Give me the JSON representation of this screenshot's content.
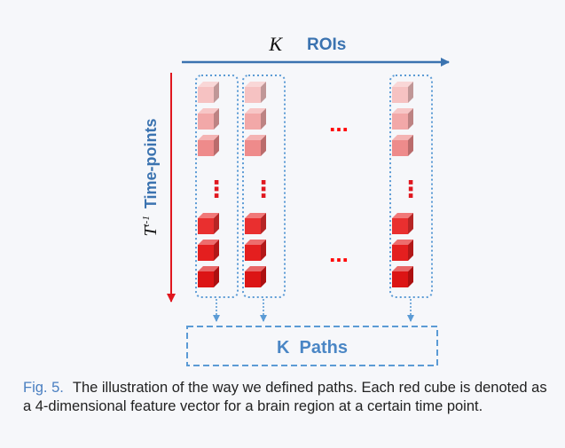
{
  "diagram": {
    "k_symbol": "K",
    "rois_label": "ROIs",
    "time_symbol_base": "T",
    "time_symbol_sup": "t-1",
    "time_label": "Time-points",
    "paths_label": "K  Paths",
    "vertical_ellipsis": "⋮",
    "horizontal_ellipsis": "...",
    "colors": {
      "arrow_blue": "#3b73b0",
      "arrow_red": "#e0171f",
      "dotted_box": "#5b9bd5",
      "paths_text": "#4a86c5",
      "cube_light": [
        "#f6c2c2",
        "#f2a8a8",
        "#ee8b8b"
      ],
      "cube_dark": [
        "#e92f2f",
        "#e41f1f",
        "#dc1515"
      ],
      "ellipsis_red": "#ff0000"
    }
  },
  "caption": {
    "label": "Fig. 5.",
    "text": "The illustration of the way we defined paths. Each red cube is denoted as a 4-dimensional feature vector for a brain region at a certain time point."
  }
}
